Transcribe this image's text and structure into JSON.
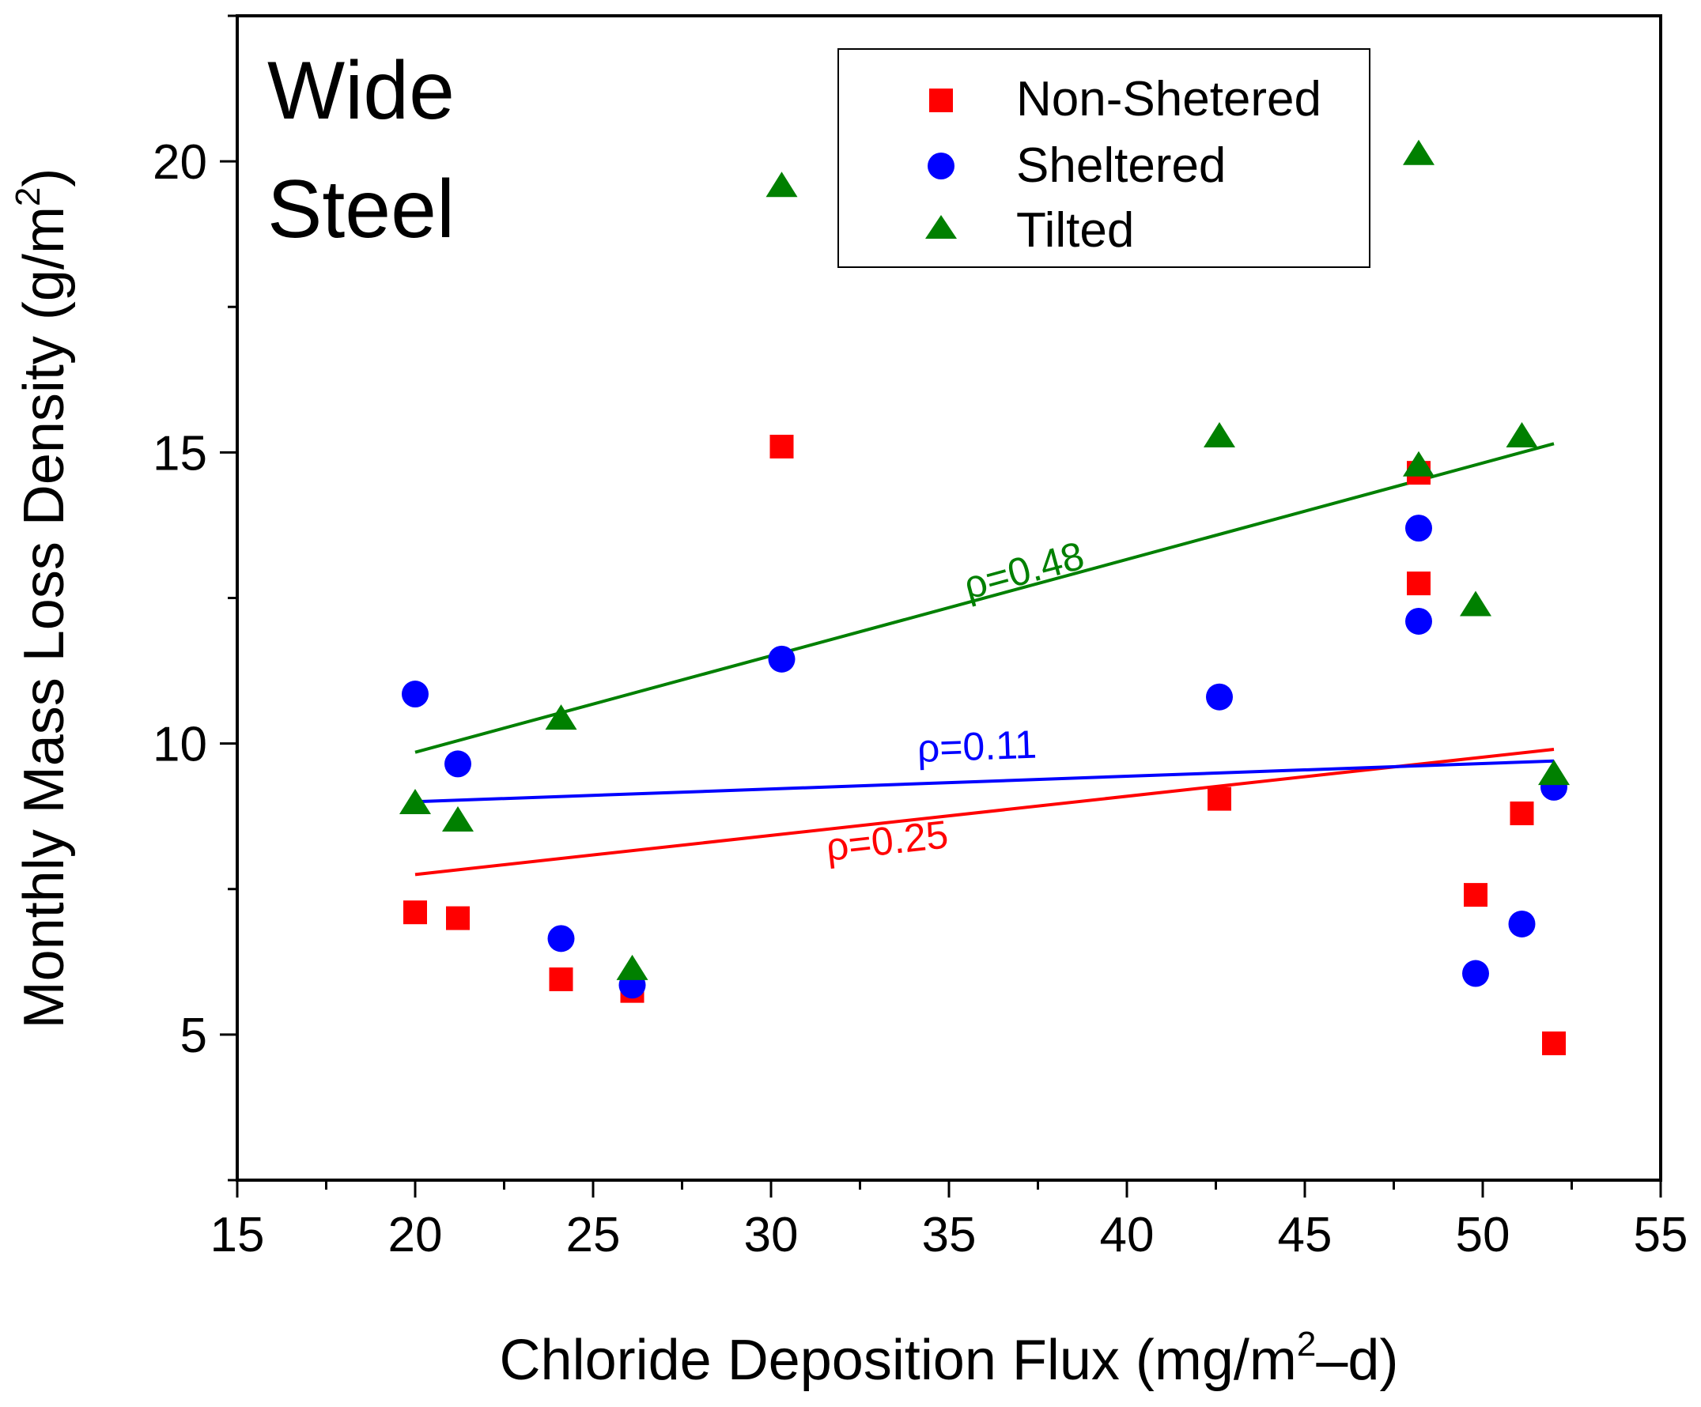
{
  "panel_label": [
    "Wide",
    "Steel"
  ],
  "chart_data": {
    "type": "scatter",
    "xlabel": {
      "main": "Chloride Deposition Flux (mg/m",
      "sup": "2",
      "tail": "–d)"
    },
    "ylabel": {
      "main": "Monthly Mass Loss Density (g/m",
      "sup": "2",
      "tail": ")"
    },
    "xlim": [
      15,
      55
    ],
    "ylim": [
      2.5,
      22.5
    ],
    "xticks": [
      15,
      20,
      25,
      30,
      35,
      40,
      45,
      50,
      55
    ],
    "yticks": [
      5,
      10,
      15,
      20
    ],
    "legend_position": "top-center",
    "series": [
      {
        "name": "Non-Shetered",
        "marker": "square",
        "color": "#ff0000",
        "points": [
          [
            20.0,
            7.1
          ],
          [
            21.2,
            7.0
          ],
          [
            24.1,
            5.95
          ],
          [
            26.1,
            5.75
          ],
          [
            30.3,
            15.1
          ],
          [
            42.6,
            9.05
          ],
          [
            48.2,
            14.65
          ],
          [
            48.2,
            12.75
          ],
          [
            49.8,
            7.4
          ],
          [
            51.1,
            8.8
          ],
          [
            52.0,
            4.85
          ]
        ]
      },
      {
        "name": "Sheltered",
        "marker": "circle",
        "color": "#0000ff",
        "points": [
          [
            20.0,
            10.85
          ],
          [
            21.2,
            9.65
          ],
          [
            24.1,
            6.65
          ],
          [
            26.1,
            5.85
          ],
          [
            30.3,
            11.45
          ],
          [
            42.6,
            10.8
          ],
          [
            48.2,
            13.7
          ],
          [
            48.2,
            12.1
          ],
          [
            49.8,
            6.05
          ],
          [
            51.1,
            6.9
          ],
          [
            52.0,
            9.25
          ]
        ]
      },
      {
        "name": "Tilted",
        "marker": "triangle",
        "color": "#008000",
        "points": [
          [
            20.0,
            8.95
          ],
          [
            21.2,
            8.65
          ],
          [
            24.1,
            10.4
          ],
          [
            26.1,
            6.1
          ],
          [
            30.3,
            19.55
          ],
          [
            42.6,
            15.25
          ],
          [
            48.2,
            20.1
          ],
          [
            48.2,
            14.75
          ],
          [
            49.8,
            12.35
          ],
          [
            51.1,
            15.25
          ],
          [
            52.0,
            9.45
          ]
        ]
      }
    ],
    "fit_lines": [
      {
        "color": "#ff0000",
        "x": [
          20.0,
          52.0
        ],
        "y": [
          7.75,
          9.9
        ],
        "label": "ρ=0.25",
        "label_at": [
          33.3,
          8.1
        ]
      },
      {
        "color": "#0000ff",
        "x": [
          20.0,
          52.0
        ],
        "y": [
          9.0,
          9.7
        ],
        "label": "ρ=0.11",
        "label_at": [
          35.8,
          9.72
        ]
      },
      {
        "color": "#008000",
        "x": [
          20.0,
          52.0
        ],
        "y": [
          9.85,
          15.15
        ],
        "label": "ρ=0.48",
        "label_at": [
          37.2,
          12.75
        ]
      }
    ]
  }
}
